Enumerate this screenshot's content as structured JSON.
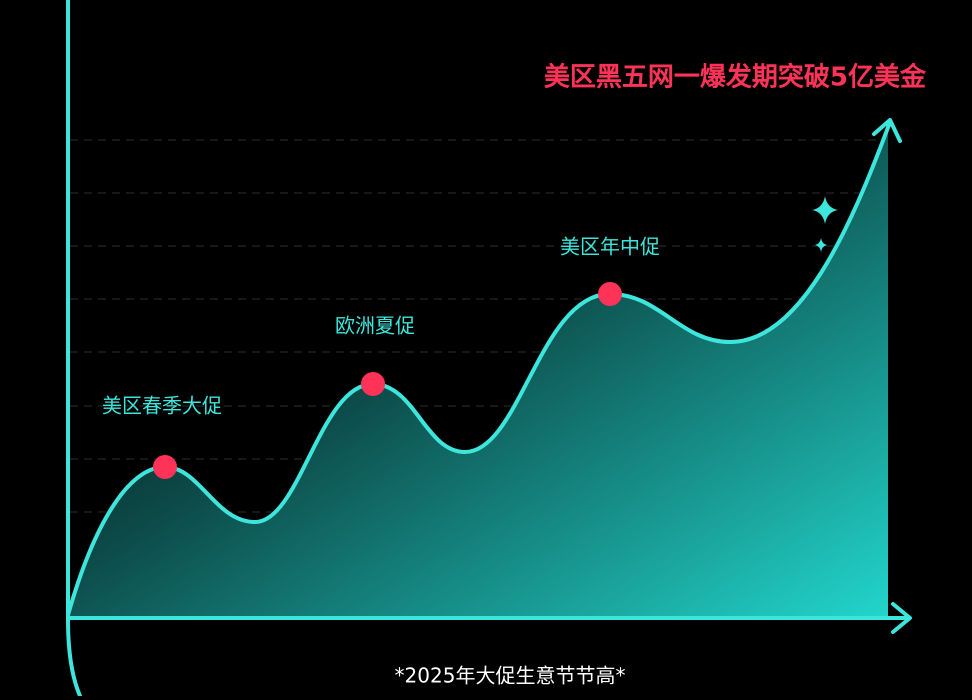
{
  "title": "美区黑五网一爆发期突破5亿美金",
  "milestones": [
    "美区春季大促",
    "欧洲夏促",
    "美区年中促"
  ],
  "footnote": "*2025年大促生意节节高*"
}
